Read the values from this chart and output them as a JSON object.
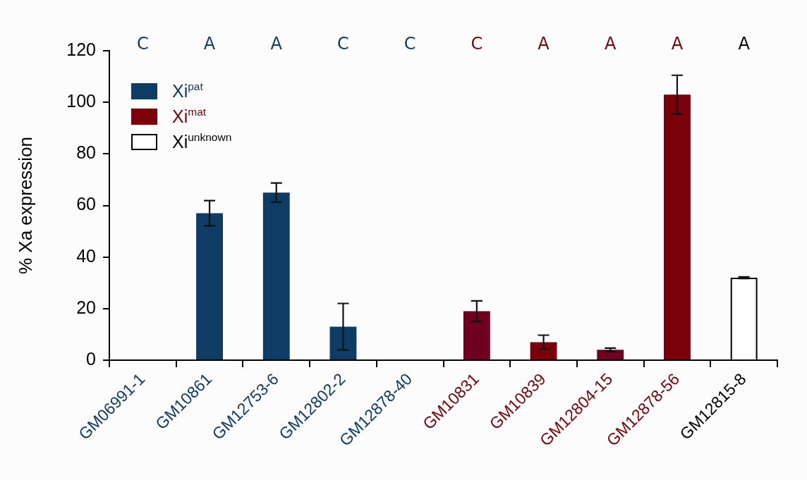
{
  "chart_data": {
    "type": "bar",
    "ylabel": "% Xa expression",
    "categories": [
      "GM06991-1",
      "GM10861",
      "GM12753-6",
      "GM12802-2",
      "GM12878-40",
      "GM10831",
      "GM10839",
      "GM12804-15",
      "GM12878-56",
      "GM12815-8"
    ],
    "series": [
      {
        "name": "Xi$^{pat}$",
        "color": "#0f3c64",
        "values": [
          0,
          57,
          65,
          13,
          0,
          null,
          null,
          null,
          null,
          null
        ],
        "errors": [
          null,
          4.9,
          3.7,
          9,
          null,
          null,
          null,
          null,
          null,
          null
        ]
      },
      {
        "name": "Xi$^{mat}$",
        "color": "#7a0009",
        "colors": [
          null,
          null,
          null,
          null,
          null,
          "#700020",
          "#7a0009",
          "#700020",
          "#7a0009",
          null
        ],
        "values": [
          null,
          null,
          null,
          null,
          null,
          19,
          7,
          4,
          103,
          null
        ],
        "errors": [
          null,
          null,
          null,
          null,
          null,
          4,
          2.7,
          0.7,
          7.5,
          null
        ]
      },
      {
        "name": "Xi$^{unknown}$",
        "color": "#ffffff",
        "values": [
          null,
          null,
          null,
          null,
          null,
          null,
          null,
          null,
          null,
          32
        ],
        "errors": [
          null,
          null,
          null,
          null,
          null,
          null,
          null,
          null,
          null,
          0.3
        ]
      }
    ],
    "annotations": [
      "C",
      "A",
      "A",
      "C",
      "C",
      "C",
      "A",
      "A",
      "A",
      "A"
    ],
    "ylim": [
      0,
      120
    ],
    "yticks": [
      0,
      20,
      40,
      60,
      80,
      100,
      120
    ],
    "grid": false,
    "legend": "top left"
  }
}
